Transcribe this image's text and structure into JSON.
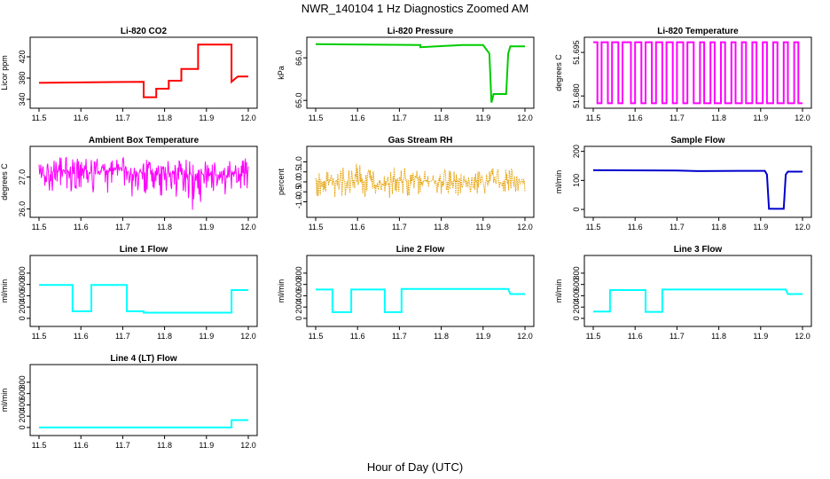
{
  "figure": {
    "title": "NWR_140104  1 Hz Diagnostics Zoomed AM",
    "xlabel": "Hour of Day (UTC)"
  },
  "chart_data": [
    {
      "type": "line",
      "title": "Li-820 CO2",
      "ylabel": "Licor ppm",
      "color": "#ff0000",
      "xlim": [
        11.5,
        12.0
      ],
      "ylim": [
        330,
        450
      ],
      "xticks": [
        "11.5",
        "11.6",
        "11.7",
        "11.8",
        "11.9",
        "12.0"
      ],
      "yticks": [
        "340",
        "380",
        "420"
      ],
      "x": [
        11.5,
        11.75,
        11.75,
        11.78,
        11.78,
        11.81,
        11.81,
        11.84,
        11.84,
        11.88,
        11.88,
        11.96,
        11.96,
        11.975,
        12.0
      ],
      "y": [
        371,
        373,
        344,
        344,
        360,
        360,
        375,
        375,
        397,
        397,
        443,
        443,
        373,
        383,
        383
      ]
    },
    {
      "type": "line",
      "title": "Li-820 Pressure",
      "ylabel": "kPa",
      "color": "#00cc00",
      "xlim": [
        11.5,
        12.0
      ],
      "ylim": [
        64.9,
        66.4
      ],
      "xticks": [
        "11.5",
        "11.6",
        "11.7",
        "11.8",
        "11.9",
        "12.0"
      ],
      "yticks": [
        "65.0",
        "66.0"
      ],
      "x": [
        11.5,
        11.75,
        11.75,
        11.85,
        11.9,
        11.915,
        11.92,
        11.925,
        11.955,
        11.96,
        11.965,
        12.0
      ],
      "y": [
        66.32,
        66.3,
        66.25,
        66.3,
        66.3,
        66.1,
        64.95,
        65.15,
        65.15,
        66.1,
        66.27,
        66.27
      ]
    },
    {
      "type": "line",
      "title": "Li-820 Temperature",
      "ylabel": "degrees C",
      "color": "#ff00ff",
      "xlim": [
        11.5,
        12.0
      ],
      "ylim": [
        51.677,
        51.699
      ],
      "xticks": [
        "11.5",
        "11.6",
        "11.7",
        "11.8",
        "11.9",
        "12.0"
      ],
      "yticks": [
        "51.680",
        "51.695"
      ],
      "pattern": "square-wave toggling between 51.6775 and 51.6985",
      "x": [
        11.5,
        11.51,
        11.51,
        11.52,
        11.52,
        11.535,
        11.535,
        11.545,
        11.545,
        11.56,
        11.56,
        11.57,
        11.57,
        11.59,
        11.59,
        11.6,
        11.6,
        11.615,
        11.615,
        11.625,
        11.625,
        11.64,
        11.64,
        11.65,
        11.65,
        11.665,
        11.665,
        11.675,
        11.675,
        11.69,
        11.69,
        11.7,
        11.7,
        11.715,
        11.715,
        11.725,
        11.725,
        11.74,
        11.74,
        11.755,
        11.755,
        11.765,
        11.765,
        11.78,
        11.78,
        11.79,
        11.79,
        11.805,
        11.805,
        11.815,
        11.815,
        11.83,
        11.83,
        11.84,
        11.84,
        11.855,
        11.855,
        11.865,
        11.865,
        11.88,
        11.88,
        11.89,
        11.89,
        11.905,
        11.905,
        11.915,
        11.915,
        11.93,
        11.93,
        11.94,
        11.94,
        11.955,
        11.955,
        11.965,
        11.965,
        11.98,
        11.98,
        11.99,
        11.99,
        12.0
      ],
      "y": [
        51.6985,
        51.6985,
        51.6775,
        51.6775,
        51.6985,
        51.6985,
        51.6775,
        51.6775,
        51.6985,
        51.6985,
        51.6775,
        51.6775,
        51.6985,
        51.6985,
        51.6775,
        51.6775,
        51.6985,
        51.6985,
        51.6775,
        51.6775,
        51.6985,
        51.6985,
        51.6775,
        51.6775,
        51.6985,
        51.6985,
        51.6775,
        51.6775,
        51.6985,
        51.6985,
        51.6775,
        51.6775,
        51.6985,
        51.6985,
        51.6775,
        51.6775,
        51.6985,
        51.6985,
        51.6775,
        51.6775,
        51.6985,
        51.6985,
        51.6775,
        51.6775,
        51.6985,
        51.6985,
        51.6775,
        51.6775,
        51.6985,
        51.6985,
        51.6775,
        51.6775,
        51.6985,
        51.6985,
        51.6775,
        51.6775,
        51.6985,
        51.6985,
        51.6775,
        51.6775,
        51.6985,
        51.6985,
        51.6775,
        51.6775,
        51.6985,
        51.6985,
        51.6775,
        51.6775,
        51.6985,
        51.6985,
        51.6775,
        51.6775,
        51.6985,
        51.6985,
        51.6775,
        51.6775,
        51.6985,
        51.6985,
        51.6775,
        51.6775
      ]
    },
    {
      "type": "line",
      "title": "Ambient Box Temperature",
      "ylabel": "degrees C",
      "color": "#ff00ff",
      "xlim": [
        11.5,
        12.0
      ],
      "ylim": [
        25.85,
        27.85
      ],
      "xticks": [
        "11.5",
        "11.6",
        "11.7",
        "11.8",
        "11.9",
        "12.0"
      ],
      "yticks": [
        "26.0",
        "27.0"
      ],
      "x": [
        11.5,
        11.52,
        11.54,
        11.56,
        11.58,
        11.6,
        11.62,
        11.64,
        11.66,
        11.68,
        11.7,
        11.72,
        11.74,
        11.76,
        11.78,
        11.8,
        11.82,
        11.84,
        11.86,
        11.88,
        11.9,
        11.92,
        11.94,
        11.96,
        11.98,
        12.0
      ],
      "y_mean": [
        27.2,
        27.1,
        27.2,
        27.2,
        27.1,
        27.2,
        27.2,
        27.15,
        27.2,
        27.2,
        27.2,
        27.1,
        27.1,
        27.2,
        27.1,
        27.1,
        27.15,
        27.1,
        27.1,
        27.1,
        27.1,
        27.1,
        27.0,
        27.1,
        27.1,
        27.1
      ],
      "y_min": [
        26.6,
        26.6,
        26.4,
        26.5,
        26.5,
        26.6,
        26.5,
        26.5,
        26.5,
        26.4,
        26.5,
        26.3,
        26.5,
        26.4,
        26.4,
        26.3,
        26.4,
        26.3,
        26.0,
        25.9,
        26.3,
        26.4,
        26.4,
        26.6,
        26.6,
        26.6
      ],
      "y_max": [
        27.6,
        27.6,
        27.6,
        27.7,
        27.6,
        27.6,
        27.6,
        27.6,
        27.6,
        27.6,
        27.7,
        27.8,
        27.5,
        27.6,
        27.5,
        27.6,
        27.5,
        27.6,
        27.5,
        27.5,
        27.5,
        27.5,
        27.5,
        27.6,
        27.6,
        27.6
      ]
    },
    {
      "type": "line",
      "title": "Gas Stream RH",
      "ylabel": "percent",
      "color": "#e69f00",
      "xlim": [
        11.5,
        12.0
      ],
      "ylim": [
        -1.6,
        1.6
      ],
      "xticks": [
        "11.5",
        "11.6",
        "11.7",
        "11.8",
        "11.9",
        "12.0"
      ],
      "yticks": [
        "-1.0",
        "-0.5",
        "0.0",
        "0.5",
        "1.0"
      ],
      "x": [
        11.5,
        11.52,
        11.54,
        11.56,
        11.58,
        11.6,
        11.62,
        11.64,
        11.66,
        11.68,
        11.7,
        11.72,
        11.74,
        11.76,
        11.78,
        11.8,
        11.82,
        11.84,
        11.86,
        11.88,
        11.9,
        11.92,
        11.94,
        11.96,
        11.98,
        12.0
      ],
      "y_mean": [
        0.0,
        0.05,
        0.0,
        0.05,
        0.0,
        0.0,
        0.05,
        0.0,
        0.05,
        0.0,
        0.05,
        0.0,
        0.05,
        0.0,
        0.05,
        0.0,
        0.05,
        0.0,
        0.0,
        0.05,
        0.0,
        0.05,
        0.0,
        0.05,
        0.0,
        0.05
      ],
      "y_min": [
        -0.7,
        -0.8,
        -0.8,
        -1.2,
        -0.8,
        -0.7,
        -0.9,
        -0.8,
        -0.6,
        -0.9,
        -0.7,
        -0.7,
        -0.8,
        -0.6,
        -0.6,
        -0.7,
        -0.8,
        -0.7,
        -0.6,
        -0.6,
        -0.6,
        -0.6,
        -0.6,
        -0.7,
        -0.6,
        -0.7
      ],
      "y_max": [
        0.5,
        0.6,
        0.6,
        0.7,
        0.8,
        1.4,
        0.6,
        0.7,
        0.6,
        0.9,
        0.7,
        0.8,
        0.6,
        0.6,
        0.6,
        0.8,
        0.6,
        0.6,
        0.6,
        0.7,
        0.8,
        1.2,
        0.7,
        0.7,
        0.6,
        1.3
      ]
    },
    {
      "type": "line",
      "title": "Sample Flow",
      "ylabel": "ml/min",
      "color": "#0000cc",
      "xlim": [
        11.5,
        12.0
      ],
      "ylim": [
        -15,
        205
      ],
      "xticks": [
        "11.5",
        "11.6",
        "11.7",
        "11.8",
        "11.9",
        "12.0"
      ],
      "yticks": [
        "0",
        "100",
        "200"
      ],
      "x": [
        11.5,
        11.7,
        11.75,
        11.85,
        11.91,
        11.915,
        11.92,
        11.955,
        11.96,
        11.965,
        12.0
      ],
      "y": [
        135,
        134,
        132,
        133,
        133,
        120,
        2,
        2,
        120,
        130,
        130
      ]
    },
    {
      "type": "line",
      "title": "Line 1 Flow",
      "ylabel": "ml/min",
      "color": "#00ffff",
      "xlim": [
        11.5,
        12.0
      ],
      "ylim": [
        -80,
        1050
      ],
      "xticks": [
        "11.5",
        "11.6",
        "11.7",
        "11.8",
        "11.9",
        "12.0"
      ],
      "yticks": [
        "0",
        "200",
        "400",
        "600",
        "800"
      ],
      "x": [
        11.5,
        11.58,
        11.58,
        11.625,
        11.625,
        11.71,
        11.71,
        11.75,
        11.75,
        11.96,
        11.96,
        12.0
      ],
      "y": [
        590,
        590,
        125,
        125,
        590,
        590,
        125,
        125,
        100,
        100,
        500,
        500
      ]
    },
    {
      "type": "line",
      "title": "Line 2 Flow",
      "ylabel": "ml/min",
      "color": "#00ffff",
      "xlim": [
        11.5,
        12.0
      ],
      "ylim": [
        -80,
        1050
      ],
      "xticks": [
        "11.5",
        "11.6",
        "11.7",
        "11.8",
        "11.9",
        "12.0"
      ],
      "yticks": [
        "0",
        "200",
        "400",
        "600",
        "800"
      ],
      "x": [
        11.5,
        11.54,
        11.54,
        11.585,
        11.585,
        11.665,
        11.665,
        11.705,
        11.705,
        11.96,
        11.965,
        12.0
      ],
      "y": [
        510,
        510,
        110,
        110,
        510,
        510,
        110,
        110,
        520,
        520,
        430,
        430
      ]
    },
    {
      "type": "line",
      "title": "Line 3 Flow",
      "ylabel": "ml/min",
      "color": "#00ffff",
      "xlim": [
        11.5,
        12.0
      ],
      "ylim": [
        -80,
        1050
      ],
      "xticks": [
        "11.5",
        "11.6",
        "11.7",
        "11.8",
        "11.9",
        "12.0"
      ],
      "yticks": [
        "0",
        "200",
        "400",
        "600",
        "800"
      ],
      "x": [
        11.5,
        11.54,
        11.54,
        11.625,
        11.625,
        11.665,
        11.665,
        11.96,
        11.965,
        12.0
      ],
      "y": [
        120,
        120,
        500,
        500,
        115,
        115,
        510,
        510,
        430,
        430
      ]
    },
    {
      "type": "line",
      "title": "Line 4 (LT) Flow",
      "ylabel": "ml/min",
      "color": "#00ffff",
      "xlim": [
        11.5,
        12.0
      ],
      "ylim": [
        -80,
        1050
      ],
      "xticks": [
        "11.5",
        "11.6",
        "11.7",
        "11.8",
        "11.9",
        "12.0"
      ],
      "yticks": [
        "0",
        "200",
        "400",
        "600",
        "800"
      ],
      "x": [
        11.5,
        11.96,
        11.96,
        12.0
      ],
      "y": [
        0,
        0,
        130,
        130
      ]
    }
  ]
}
